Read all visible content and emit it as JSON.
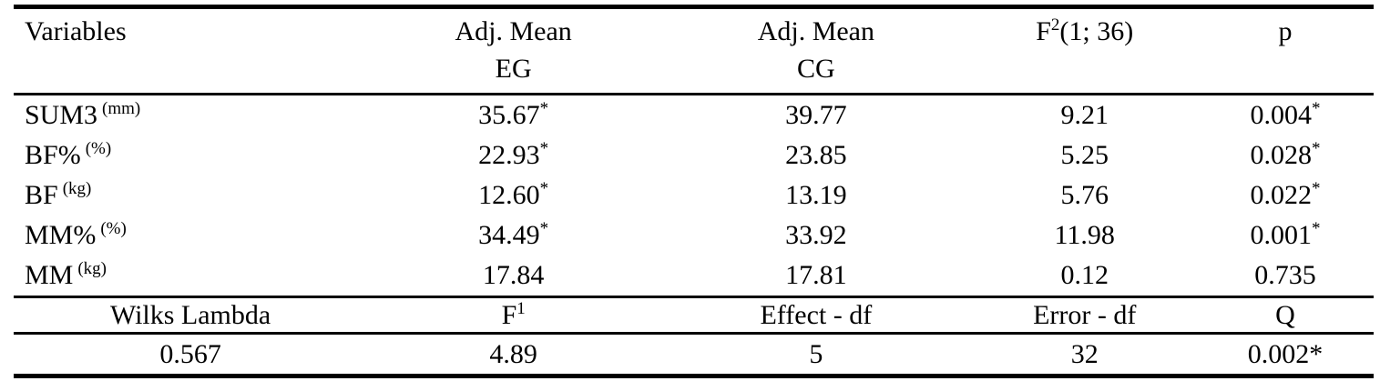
{
  "table": {
    "columns": {
      "variables": "Variables",
      "adj_mean": "Adj. Mean",
      "eg": "EG",
      "cg": "CG",
      "f_base": "F",
      "f_sup": "2",
      "f_args": "(1; 36)",
      "p": "p"
    },
    "rows": [
      {
        "name": "SUM3",
        "unit": "(mm)",
        "eg": "35.67",
        "eg_star": "*",
        "cg": "39.77",
        "f": "9.21",
        "p": "0.004",
        "p_star": "*"
      },
      {
        "name": "BF%",
        "unit": "(%)",
        "eg": "22.93",
        "eg_star": "*",
        "cg": "23.85",
        "f": "5.25",
        "p": "0.028",
        "p_star": "*"
      },
      {
        "name": "BF",
        "unit": "(kg)",
        "eg": "12.60",
        "eg_star": "*",
        "cg": "13.19",
        "f": "5.76",
        "p": "0.022",
        "p_star": "*"
      },
      {
        "name": "MM%",
        "unit": "(%)",
        "eg": "34.49",
        "eg_star": "*",
        "cg": "33.92",
        "f": "11.98",
        "p": "0.001",
        "p_star": "*"
      },
      {
        "name": "MM",
        "unit": "(kg)",
        "eg": "17.84",
        "eg_star": "",
        "cg": "17.81",
        "f": "0.12",
        "p": "0.735",
        "p_star": ""
      }
    ],
    "multivariate_header": {
      "wilks": "Wilks Lambda",
      "f_base": "F",
      "f_sup": "1",
      "effect_df": "Effect - df",
      "error_df": "Error - df",
      "q": "Q"
    },
    "multivariate_values": {
      "wilks": "0.567",
      "f": "4.89",
      "effect_df": "5",
      "error_df": "32",
      "q": "0.002*"
    },
    "colors": {
      "text": "#000000",
      "background": "#ffffff",
      "rule": "#000000"
    }
  }
}
